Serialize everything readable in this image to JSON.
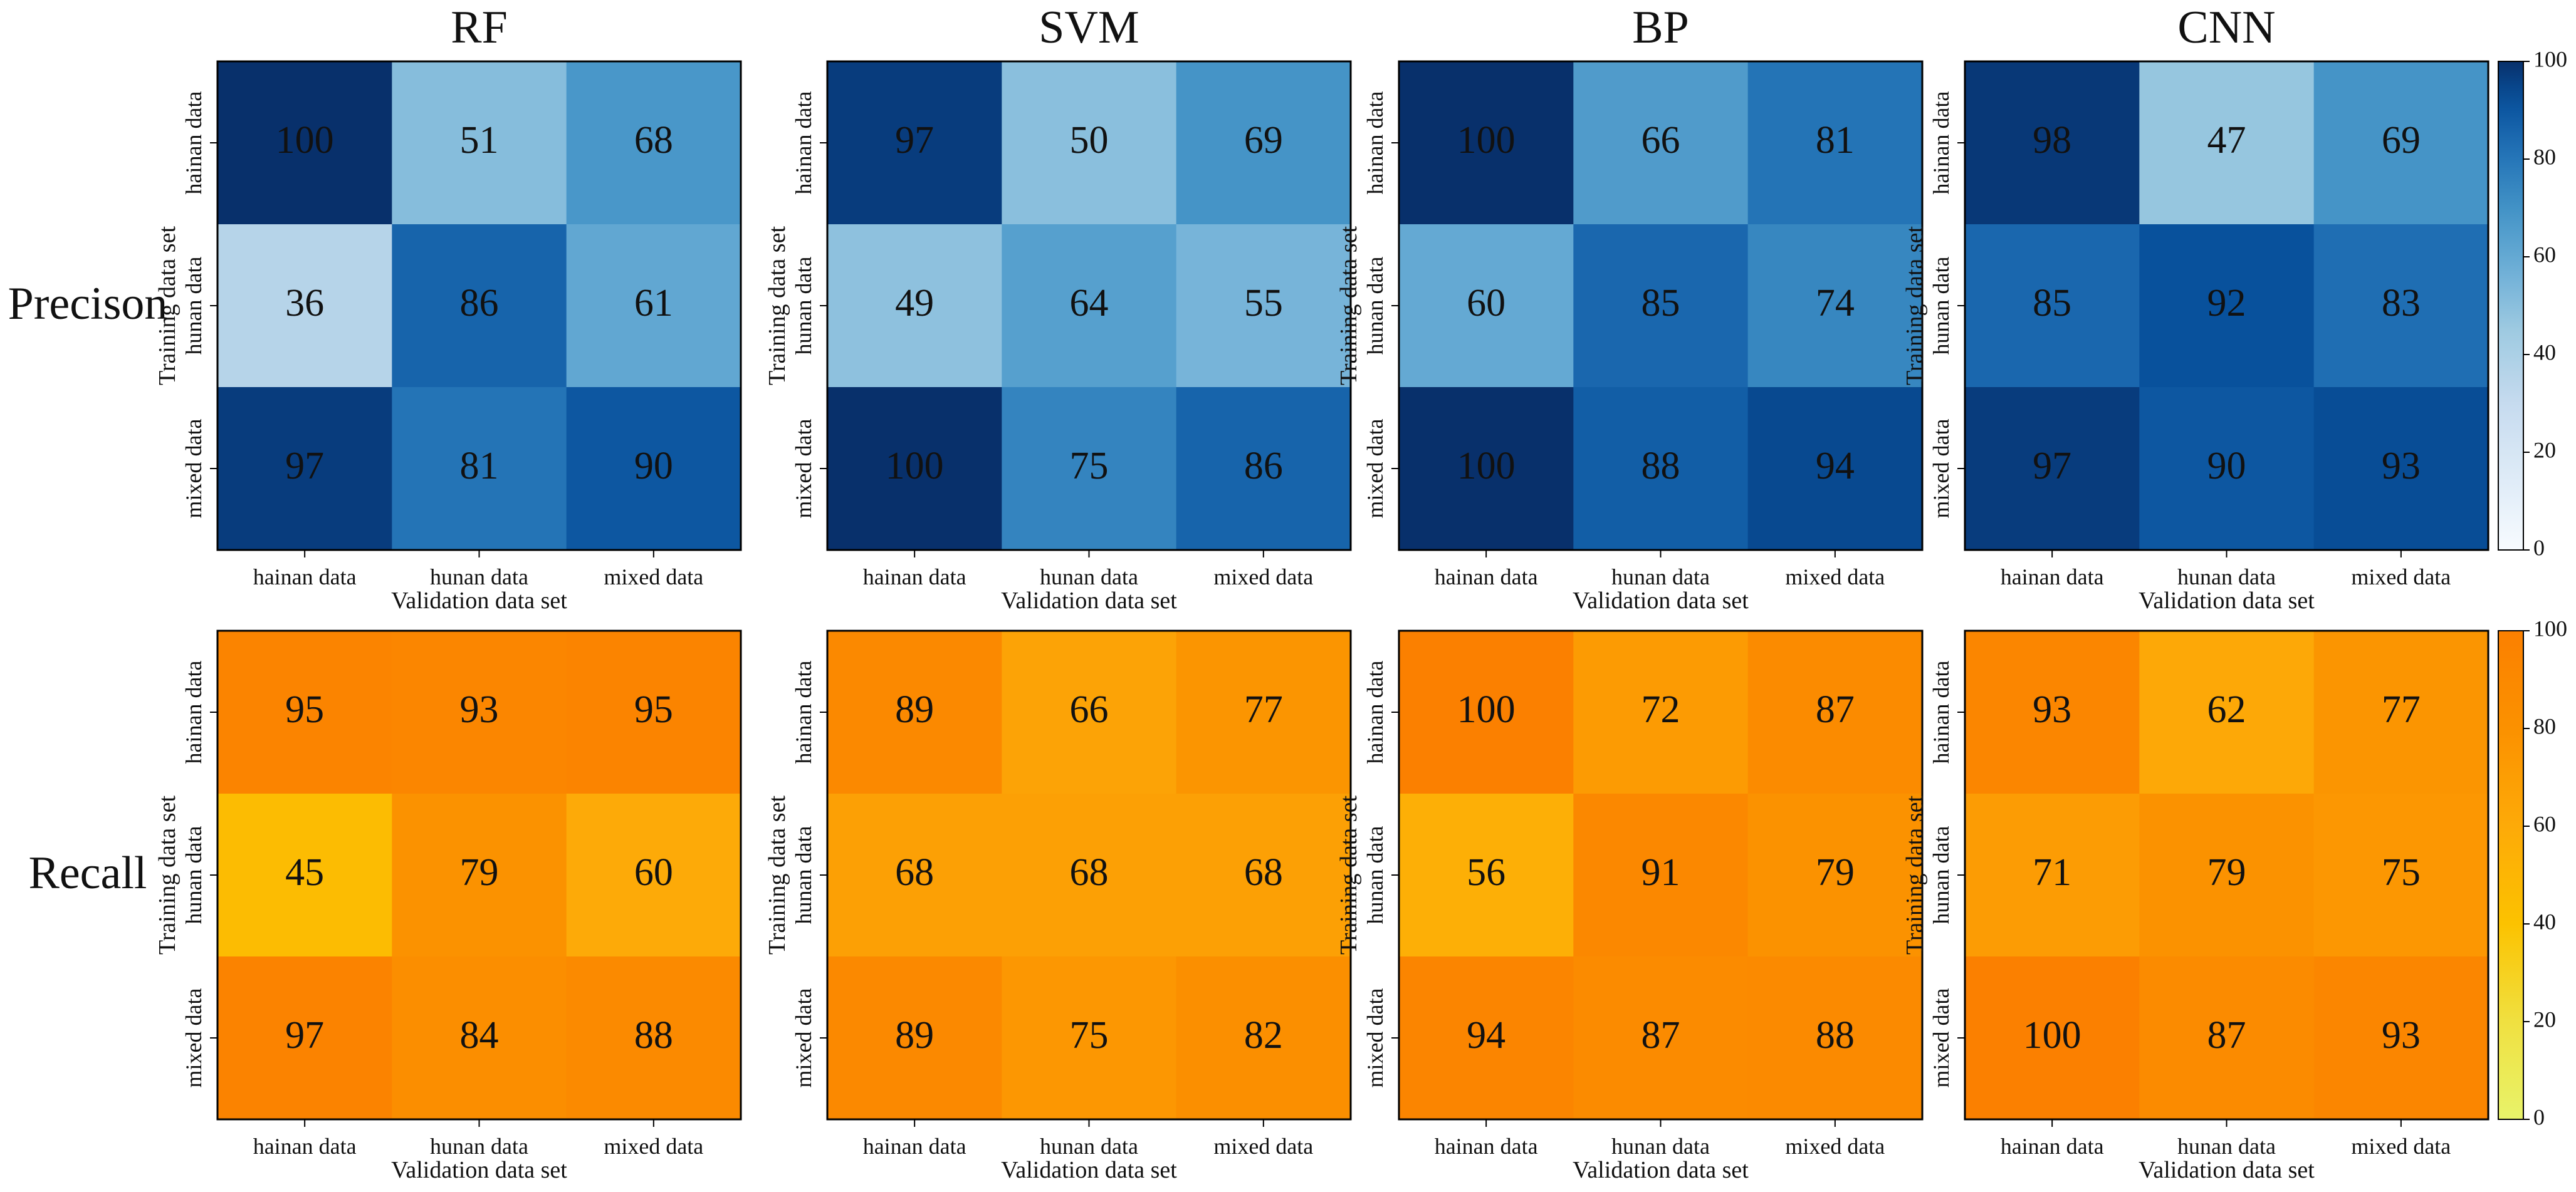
{
  "chart_data": {
    "type": "heatmap",
    "models": [
      "RF",
      "SVM",
      "BP",
      "CNN"
    ],
    "rows": [
      {
        "label": "Precison",
        "colormap": "blues",
        "colorbar_range": [
          0,
          100
        ],
        "colorbar_ticks": [
          0,
          20,
          40,
          60,
          80,
          100
        ],
        "matrices": [
          [
            [
              100,
              51,
              68
            ],
            [
              36,
              86,
              61
            ],
            [
              97,
              81,
              90
            ]
          ],
          [
            [
              97,
              50,
              69
            ],
            [
              49,
              64,
              55
            ],
            [
              100,
              75,
              86
            ]
          ],
          [
            [
              100,
              66,
              81
            ],
            [
              60,
              85,
              74
            ],
            [
              100,
              88,
              94
            ]
          ],
          [
            [
              98,
              47,
              69
            ],
            [
              85,
              92,
              83
            ],
            [
              97,
              90,
              93
            ]
          ]
        ]
      },
      {
        "label": "Recall",
        "colormap": "yellow-orange",
        "colorbar_range": [
          0,
          100
        ],
        "colorbar_ticks": [
          0,
          20,
          40,
          60,
          80,
          100
        ],
        "matrices": [
          [
            [
              95,
              93,
              95
            ],
            [
              45,
              79,
              60
            ],
            [
              97,
              84,
              88
            ]
          ],
          [
            [
              89,
              66,
              77
            ],
            [
              68,
              68,
              68
            ],
            [
              89,
              75,
              82
            ]
          ],
          [
            [
              100,
              72,
              87
            ],
            [
              56,
              91,
              79
            ],
            [
              94,
              87,
              88
            ]
          ],
          [
            [
              93,
              62,
              77
            ],
            [
              71,
              79,
              75
            ],
            [
              100,
              87,
              93
            ]
          ]
        ]
      }
    ],
    "categories": [
      "hainan data",
      "hunan data",
      "mixed data"
    ],
    "xlabel": "Validation data set",
    "ylabel": "Training data set"
  }
}
